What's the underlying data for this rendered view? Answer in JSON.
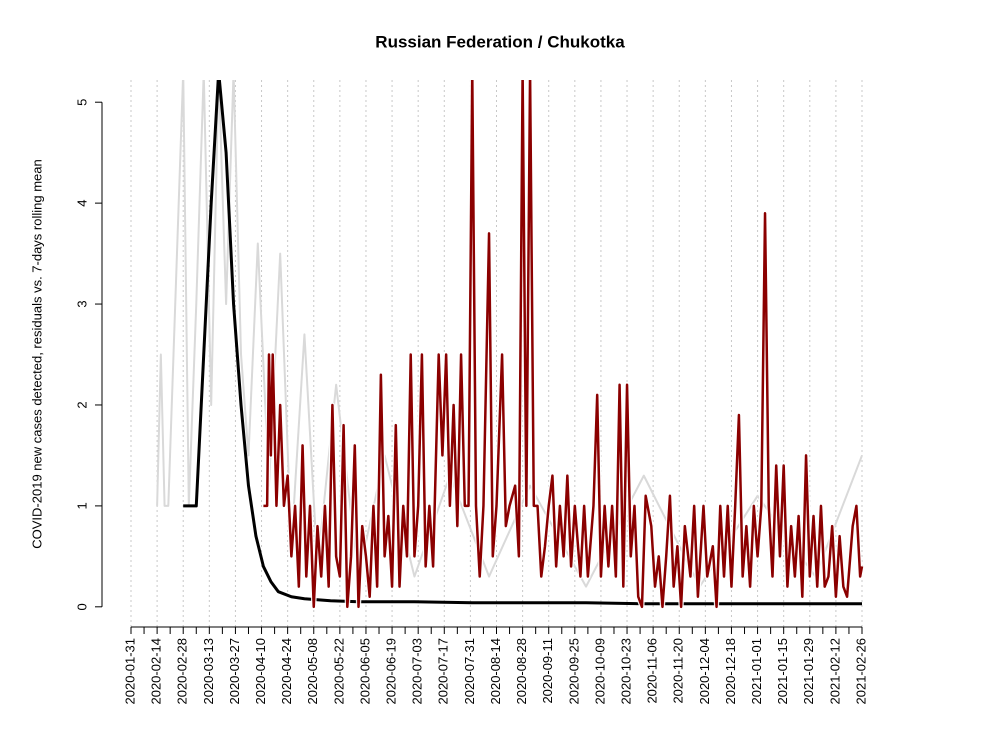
{
  "chart_data": {
    "type": "line",
    "title": "Russian Federation / Chukotka",
    "ylabel": "COVID-2019 new cases detected, residuals vs. 7-days rolling mean",
    "xlim": [
      "2020-01-31",
      "2021-02-26"
    ],
    "ylim": [
      -0.2,
      5.22
    ],
    "yticks": [
      0,
      1,
      2,
      3,
      4,
      5
    ],
    "xticks": [
      "2020-01-31",
      "2020-02-14",
      "2020-02-28",
      "2020-03-13",
      "2020-03-27",
      "2020-04-10",
      "2020-04-24",
      "2020-05-08",
      "2020-05-22",
      "2020-06-05",
      "2020-06-19",
      "2020-07-03",
      "2020-07-17",
      "2020-07-31",
      "2020-08-14",
      "2020-08-28",
      "2020-09-11",
      "2020-09-25",
      "2020-10-09",
      "2020-10-23",
      "2020-11-06",
      "2020-11-20",
      "2020-12-04",
      "2020-12-18",
      "2021-01-01",
      "2021-01-15",
      "2021-01-29",
      "2021-02-12",
      "2021-02-26"
    ],
    "xticks_minor": [
      "2020-02-07",
      "2020-02-21",
      "2020-03-06",
      "2020-03-20",
      "2020-04-03",
      "2020-04-17",
      "2020-05-01",
      "2020-05-15",
      "2020-05-29",
      "2020-06-12",
      "2020-06-26",
      "2020-07-10",
      "2020-07-24",
      "2020-08-07",
      "2020-08-21",
      "2020-09-04",
      "2020-09-18",
      "2020-10-02",
      "2020-10-16",
      "2020-10-30",
      "2020-11-13",
      "2020-11-27",
      "2020-12-11",
      "2020-12-25",
      "2021-01-08",
      "2021-01-22",
      "2021-02-05",
      "2021-02-19"
    ],
    "grid": true,
    "series": [
      {
        "color": "#d9d9d9",
        "width": 2,
        "x": [
          "2020-02-14",
          "2020-02-16",
          "2020-02-18",
          "2020-02-20",
          "2020-02-28",
          "2020-03-02",
          "2020-03-06",
          "2020-03-10",
          "2020-03-14",
          "2020-03-18",
          "2020-03-22",
          "2020-03-26",
          "2020-03-30",
          "2020-04-03",
          "2020-04-08",
          "2020-04-14",
          "2020-04-20",
          "2020-04-26",
          "2020-05-03",
          "2020-05-10",
          "2020-05-20",
          "2020-06-01",
          "2020-06-15",
          "2020-07-01",
          "2020-07-20",
          "2020-08-10",
          "2020-09-01",
          "2020-10-01",
          "2020-11-01",
          "2020-12-01",
          "2021-01-01",
          "2021-02-01",
          "2021-02-26"
        ],
        "values": [
          1,
          2.5,
          1,
          1,
          5.3,
          1,
          3,
          5.3,
          2,
          5.3,
          3,
          5.3,
          2.5,
          1.5,
          3.6,
          1.2,
          3.5,
          0.6,
          2.7,
          0.4,
          2.2,
          0.3,
          1.5,
          0.3,
          1.3,
          0.3,
          1.2,
          0.2,
          1.3,
          0.2,
          1.1,
          0.3,
          1.5
        ]
      },
      {
        "color": "#000000",
        "width": 3,
        "x": [
          "2020-02-28",
          "2020-03-06",
          "2020-03-10",
          "2020-03-14",
          "2020-03-18",
          "2020-03-22",
          "2020-03-26",
          "2020-03-30",
          "2020-04-03",
          "2020-04-07",
          "2020-04-11",
          "2020-04-15",
          "2020-04-19",
          "2020-04-26",
          "2020-05-03",
          "2020-05-17",
          "2020-06-01",
          "2020-07-01",
          "2020-08-01",
          "2020-09-01",
          "2020-10-01",
          "2020-11-01",
          "2020-12-01",
          "2021-01-01",
          "2021-02-01",
          "2021-02-26"
        ],
        "values": [
          1,
          1,
          2.5,
          4,
          5.3,
          4.5,
          3,
          2,
          1.2,
          0.7,
          0.4,
          0.25,
          0.15,
          0.1,
          0.08,
          0.06,
          0.05,
          0.05,
          0.04,
          0.04,
          0.04,
          0.03,
          0.03,
          0.03,
          0.03,
          0.03
        ]
      },
      {
        "color": "#8b0000",
        "width": 2.5,
        "halo": "#ffffff",
        "x": [
          "2020-04-11",
          "2020-04-13",
          "2020-04-14",
          "2020-04-15",
          "2020-04-16",
          "2020-04-18",
          "2020-04-20",
          "2020-04-22",
          "2020-04-24",
          "2020-04-26",
          "2020-04-28",
          "2020-04-30",
          "2020-05-02",
          "2020-05-04",
          "2020-05-06",
          "2020-05-08",
          "2020-05-10",
          "2020-05-12",
          "2020-05-14",
          "2020-05-16",
          "2020-05-18",
          "2020-05-20",
          "2020-05-22",
          "2020-05-24",
          "2020-05-26",
          "2020-05-28",
          "2020-05-30",
          "2020-06-01",
          "2020-06-03",
          "2020-06-05",
          "2020-06-07",
          "2020-06-09",
          "2020-06-11",
          "2020-06-13",
          "2020-06-15",
          "2020-06-17",
          "2020-06-19",
          "2020-06-21",
          "2020-06-23",
          "2020-06-25",
          "2020-06-27",
          "2020-06-29",
          "2020-07-01",
          "2020-07-03",
          "2020-07-05",
          "2020-07-07",
          "2020-07-09",
          "2020-07-11",
          "2020-07-14",
          "2020-07-16",
          "2020-07-18",
          "2020-07-20",
          "2020-07-22",
          "2020-07-24",
          "2020-07-26",
          "2020-07-28",
          "2020-07-30",
          "2020-08-01",
          "2020-08-03",
          "2020-08-05",
          "2020-08-07",
          "2020-08-10",
          "2020-08-12",
          "2020-08-14",
          "2020-08-17",
          "2020-08-19",
          "2020-08-21",
          "2020-08-24",
          "2020-08-26",
          "2020-08-28",
          "2020-08-30",
          "2020-09-01",
          "2020-09-03",
          "2020-09-05",
          "2020-09-07",
          "2020-09-09",
          "2020-09-11",
          "2020-09-13",
          "2020-09-15",
          "2020-09-17",
          "2020-09-19",
          "2020-09-21",
          "2020-09-23",
          "2020-09-25",
          "2020-09-28",
          "2020-09-30",
          "2020-10-02",
          "2020-10-05",
          "2020-10-07",
          "2020-10-09",
          "2020-10-11",
          "2020-10-13",
          "2020-10-15",
          "2020-10-17",
          "2020-10-19",
          "2020-10-21",
          "2020-10-23",
          "2020-10-25",
          "2020-10-27",
          "2020-10-29",
          "2020-10-31",
          "2020-11-02",
          "2020-11-05",
          "2020-11-07",
          "2020-11-09",
          "2020-11-11",
          "2020-11-13",
          "2020-11-15",
          "2020-11-17",
          "2020-11-19",
          "2020-11-21",
          "2020-11-23",
          "2020-11-26",
          "2020-11-28",
          "2020-11-30",
          "2020-12-03",
          "2020-12-05",
          "2020-12-08",
          "2020-12-10",
          "2020-12-12",
          "2020-12-14",
          "2020-12-16",
          "2020-12-18",
          "2020-12-20",
          "2020-12-22",
          "2020-12-24",
          "2020-12-26",
          "2020-12-28",
          "2020-12-30",
          "2021-01-01",
          "2021-01-03",
          "2021-01-05",
          "2021-01-07",
          "2021-01-09",
          "2021-01-11",
          "2021-01-13",
          "2021-01-15",
          "2021-01-17",
          "2021-01-19",
          "2021-01-21",
          "2021-01-23",
          "2021-01-25",
          "2021-01-27",
          "2021-01-29",
          "2021-01-31",
          "2021-02-02",
          "2021-02-04",
          "2021-02-06",
          "2021-02-08",
          "2021-02-10",
          "2021-02-12",
          "2021-02-14",
          "2021-02-16",
          "2021-02-18",
          "2021-02-21",
          "2021-02-23",
          "2021-02-25",
          "2021-02-26"
        ],
        "values": [
          1,
          1,
          2.5,
          1.5,
          2.5,
          1,
          2,
          1,
          1.3,
          0.5,
          1,
          0.2,
          1.6,
          0.3,
          1,
          0,
          0.8,
          0.3,
          1,
          0.2,
          2,
          0.5,
          0.3,
          1.8,
          0,
          0.5,
          1.6,
          0,
          0.8,
          0.5,
          0.1,
          1,
          0.2,
          2.3,
          0.5,
          0.9,
          0.2,
          1.8,
          0.2,
          1,
          0.5,
          2.5,
          0.5,
          1,
          2.5,
          0.4,
          1,
          0.4,
          2.5,
          1.5,
          2.5,
          1,
          2,
          0.8,
          2.5,
          1,
          1,
          5.3,
          1,
          0.3,
          1,
          3.7,
          0.5,
          1,
          2.5,
          0.8,
          1,
          1.2,
          0.5,
          5.3,
          1,
          5.3,
          1,
          1,
          0.3,
          0.6,
          1,
          1.3,
          0.4,
          1,
          0.5,
          1.3,
          0.4,
          1,
          0.3,
          1,
          0.3,
          1,
          2.1,
          0.3,
          1,
          0.4,
          1,
          0.3,
          2.2,
          0.2,
          2.2,
          0.5,
          1,
          0.1,
          0,
          1.1,
          0.8,
          0.2,
          0.5,
          0,
          0.5,
          1.1,
          0.2,
          0.6,
          0,
          0.8,
          0.3,
          1,
          0.1,
          1,
          0.3,
          0.6,
          0,
          1,
          0.3,
          1,
          0.2,
          1,
          1.9,
          0.3,
          0.8,
          0.2,
          1,
          0.5,
          1,
          3.9,
          1,
          0.3,
          1.4,
          0.5,
          1.4,
          0.2,
          0.8,
          0.3,
          0.9,
          0.1,
          1.5,
          0.3,
          0.9,
          0.2,
          1,
          0.2,
          0.3,
          0.8,
          0.1,
          0.7,
          0.2,
          0.1,
          0.8,
          1,
          0.3,
          0.4
        ]
      }
    ]
  }
}
